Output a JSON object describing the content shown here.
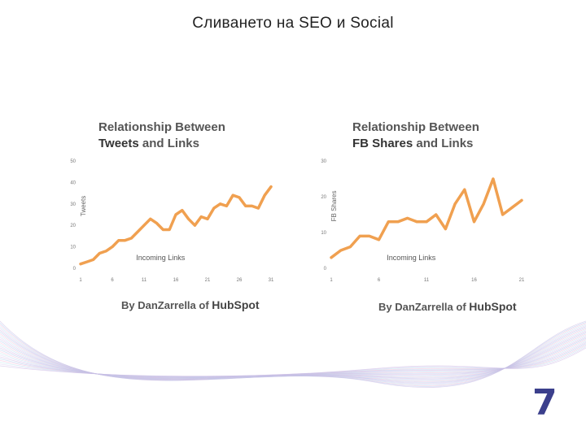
{
  "slide": {
    "title": "Сливането на SEO и Social",
    "page_number": "7"
  },
  "chart_data": [
    {
      "type": "line",
      "title_line1": "Relationship Between",
      "title_line2_bold": "Tweets",
      "title_line2_rest": " and Links",
      "xlabel": "Incoming Links",
      "ylabel": "Tweets",
      "xlim": [
        1,
        31
      ],
      "ylim": [
        0,
        50
      ],
      "xticks": [
        1,
        6,
        11,
        16,
        21,
        26,
        31
      ],
      "yticks": [
        0,
        10,
        20,
        30,
        40,
        50
      ],
      "color": "#f0a050",
      "x": [
        1,
        2,
        3,
        4,
        5,
        6,
        7,
        8,
        9,
        10,
        11,
        12,
        13,
        14,
        15,
        16,
        17,
        18,
        19,
        20,
        21,
        22,
        23,
        24,
        25,
        26,
        27,
        28,
        29,
        30,
        31
      ],
      "y": [
        2,
        3,
        4,
        7,
        8,
        10,
        13,
        13,
        14,
        17,
        20,
        23,
        21,
        18,
        18,
        25,
        27,
        23,
        20,
        24,
        23,
        28,
        30,
        29,
        34,
        33,
        29,
        29,
        28,
        34,
        38
      ],
      "credit_by": "By Dan",
      "credit_name": "Zarrella",
      "credit_of": " of ",
      "credit_brand": "HubSpot"
    },
    {
      "type": "line",
      "title_line1": "Relationship Between",
      "title_line2_bold": "FB Shares",
      "title_line2_rest": " and Links",
      "xlabel": "Incoming Links",
      "ylabel": "FB Shares",
      "xlim": [
        1,
        21
      ],
      "ylim": [
        0,
        30
      ],
      "xticks": [
        1,
        6,
        11,
        16,
        21
      ],
      "yticks": [
        0,
        10,
        20,
        30
      ],
      "color": "#f0a050",
      "x": [
        1,
        2,
        3,
        4,
        5,
        6,
        7,
        8,
        9,
        10,
        11,
        12,
        13,
        14,
        15,
        16,
        17,
        18,
        19,
        20,
        21
      ],
      "y": [
        3,
        5,
        6,
        9,
        9,
        8,
        13,
        13,
        14,
        13,
        13,
        15,
        11,
        18,
        22,
        13,
        18,
        25,
        15,
        17,
        19
      ],
      "credit_by": "By Dan",
      "credit_name": "Zarrella",
      "credit_of": " of ",
      "credit_brand": "HubSpot"
    }
  ]
}
